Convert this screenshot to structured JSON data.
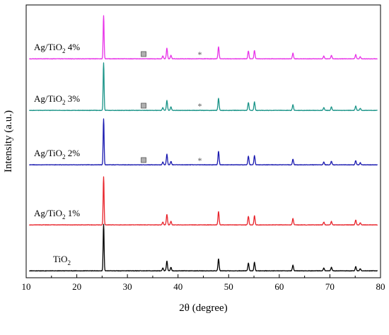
{
  "chart_data": {
    "type": "line",
    "xlabel": "2θ (degree)",
    "ylabel": "Intensity (a.u.)",
    "xlim": [
      10,
      80
    ],
    "x_ticks": [
      10,
      20,
      30,
      40,
      50,
      60,
      70,
      80
    ],
    "y_tick_labels": "none",
    "grid": false,
    "legend": "inline labels on the left of each trace",
    "offset_stacked": true,
    "series": [
      {
        "label_text": "TiO",
        "label_subscript": "2",
        "label_suffix": "",
        "color": "#000000",
        "peaks": [
          [
            25.3,
            66
          ],
          [
            37.0,
            4
          ],
          [
            37.8,
            14
          ],
          [
            38.6,
            5
          ],
          [
            48.0,
            17
          ],
          [
            53.9,
            11
          ],
          [
            55.1,
            12
          ],
          [
            62.7,
            8
          ],
          [
            68.8,
            4
          ],
          [
            70.3,
            5
          ],
          [
            75.1,
            6
          ],
          [
            76.0,
            3
          ]
        ],
        "markers": []
      },
      {
        "label_text": "Ag/TiO",
        "label_subscript": "2",
        "label_suffix": " 1%",
        "color": "#e8242b",
        "peaks": [
          [
            25.3,
            68
          ],
          [
            37.0,
            4
          ],
          [
            37.8,
            15
          ],
          [
            38.6,
            5
          ],
          [
            48.0,
            19
          ],
          [
            53.9,
            12
          ],
          [
            55.1,
            13
          ],
          [
            62.7,
            9
          ],
          [
            68.8,
            4
          ],
          [
            70.3,
            5
          ],
          [
            75.1,
            7
          ],
          [
            76.0,
            3
          ]
        ],
        "markers": []
      },
      {
        "label_text": "Ag/TiO",
        "label_subscript": "2",
        "label_suffix": " 2%",
        "color": "#1a1ab0",
        "peaks": [
          [
            25.3,
            65
          ],
          [
            37.0,
            4
          ],
          [
            37.8,
            15
          ],
          [
            38.6,
            5
          ],
          [
            48.0,
            19
          ],
          [
            53.9,
            12
          ],
          [
            55.1,
            13
          ],
          [
            62.7,
            8
          ],
          [
            68.8,
            4
          ],
          [
            70.3,
            5
          ],
          [
            75.1,
            6
          ],
          [
            76.0,
            3
          ]
        ],
        "markers": [
          {
            "symbol": "square",
            "x": 33.2
          },
          {
            "symbol": "star",
            "x": 44.3
          }
        ]
      },
      {
        "label_text": "Ag/TiO",
        "label_subscript": "2",
        "label_suffix": " 3%",
        "color": "#1a9488",
        "peaks": [
          [
            25.3,
            67
          ],
          [
            37.0,
            4
          ],
          [
            37.8,
            14
          ],
          [
            38.6,
            5
          ],
          [
            48.0,
            17
          ],
          [
            53.9,
            11
          ],
          [
            55.1,
            12
          ],
          [
            62.7,
            8
          ],
          [
            68.8,
            4
          ],
          [
            70.3,
            5
          ],
          [
            75.1,
            6
          ],
          [
            76.0,
            3
          ]
        ],
        "markers": [
          {
            "symbol": "square",
            "x": 33.2
          },
          {
            "symbol": "star",
            "x": 44.3
          }
        ]
      },
      {
        "label_text": "Ag/TiO",
        "label_subscript": "2",
        "label_suffix": " 4%",
        "color": "#e832e8",
        "peaks": [
          [
            25.3,
            61
          ],
          [
            37.0,
            4
          ],
          [
            37.8,
            15
          ],
          [
            38.6,
            5
          ],
          [
            48.0,
            17
          ],
          [
            53.9,
            11
          ],
          [
            55.1,
            12
          ],
          [
            62.7,
            8
          ],
          [
            68.8,
            4
          ],
          [
            70.3,
            5
          ],
          [
            75.1,
            6
          ],
          [
            76.0,
            3
          ]
        ],
        "markers": [
          {
            "symbol": "square",
            "x": 33.2
          },
          {
            "symbol": "star",
            "x": 44.3
          }
        ]
      }
    ]
  }
}
